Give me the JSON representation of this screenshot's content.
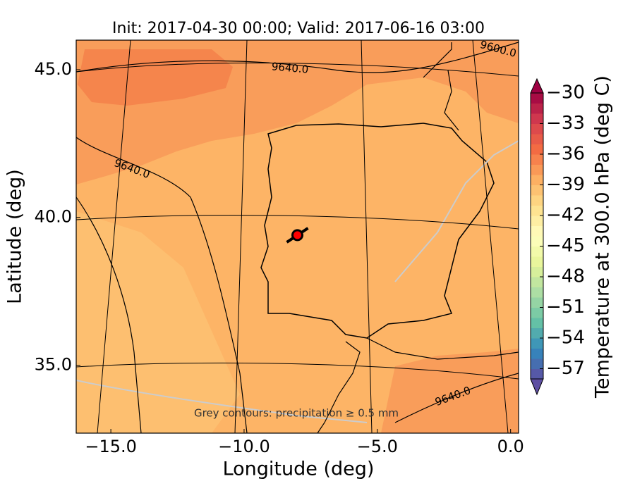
{
  "title": "Init: 2017-04-30 00:00; Valid: 2017-06-16 03:00",
  "x_axis": {
    "label": "Longitude (deg)",
    "lim": [
      -16.3,
      0.3
    ],
    "ticks": [
      {
        "value": -15,
        "label": "−15.0"
      },
      {
        "value": -10,
        "label": "−10.0"
      },
      {
        "value": -5,
        "label": "−5.0"
      },
      {
        "value": 0,
        "label": "0.0"
      }
    ]
  },
  "y_axis": {
    "label": "Latitude (deg)",
    "lim": [
      32.7,
      46.0
    ],
    "ticks": [
      {
        "value": 35,
        "label": "35.0"
      },
      {
        "value": 40,
        "label": "40.0"
      },
      {
        "value": 45,
        "label": "45.0"
      }
    ]
  },
  "colorbar": {
    "label": "Temperature at 300.0 hPa (deg C)",
    "lim": [
      -58,
      -30
    ],
    "colormap": [
      "#5e4fa2",
      "#3288bd",
      "#66c2a5",
      "#abdda4",
      "#e6f598",
      "#ffffbf",
      "#fee08b",
      "#fdae61",
      "#f46d43",
      "#d53e4f",
      "#9e0142"
    ],
    "ticks": [
      {
        "value": -30,
        "label": "−30"
      },
      {
        "value": -33,
        "label": "−33"
      },
      {
        "value": -36,
        "label": "−36"
      },
      {
        "value": -39,
        "label": "−39"
      },
      {
        "value": -42,
        "label": "−42"
      },
      {
        "value": -45,
        "label": "−45"
      },
      {
        "value": -48,
        "label": "−48"
      },
      {
        "value": -51,
        "label": "−51"
      },
      {
        "value": -54,
        "label": "−54"
      },
      {
        "value": -57,
        "label": "−57"
      }
    ]
  },
  "contour_labels": [
    "9640.0",
    "9640.0",
    "9640.0",
    "9600.0"
  ],
  "note": "Grey contours: precipitation ≥ 0.5 mm",
  "marker": {
    "lon": -8.0,
    "lat": 39.4
  }
}
